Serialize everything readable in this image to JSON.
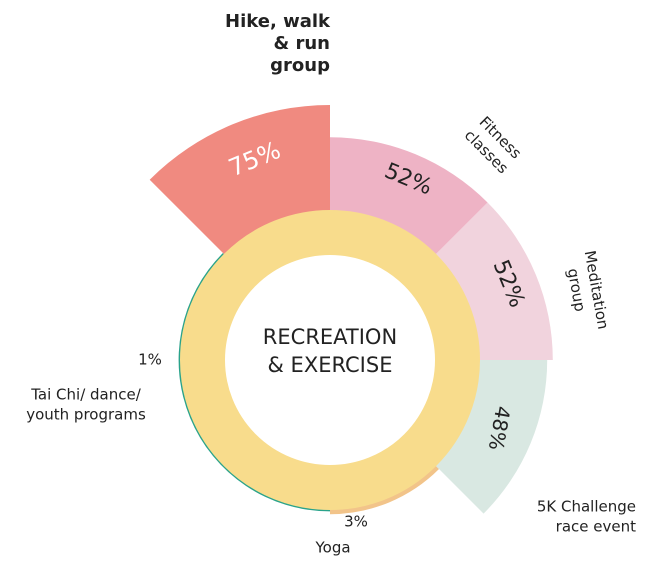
{
  "chart_data": {
    "type": "radial",
    "title": [
      "RECREATION",
      "& EXERCISE"
    ],
    "categories": [
      [
        "Hike, walk",
        "& run",
        "group"
      ],
      [
        "Fitness",
        "classes"
      ],
      [
        "Meditation",
        "group"
      ],
      [
        "5K Challenge",
        "race event"
      ],
      [
        "Yoga"
      ],
      [
        "Tai Chi/ dance/",
        "youth programs"
      ]
    ],
    "values": [
      75,
      52,
      52,
      48,
      3,
      1
    ],
    "value_labels": [
      "75%",
      "52%",
      "52%",
      "48%",
      "3%",
      "1%"
    ],
    "colors": [
      "#f08a80",
      "#eeb3c5",
      "#f1d3dd",
      "#d9e8e2",
      "#f2c48a",
      "#2aa38b"
    ],
    "ring_color": "#f8dc8c"
  }
}
